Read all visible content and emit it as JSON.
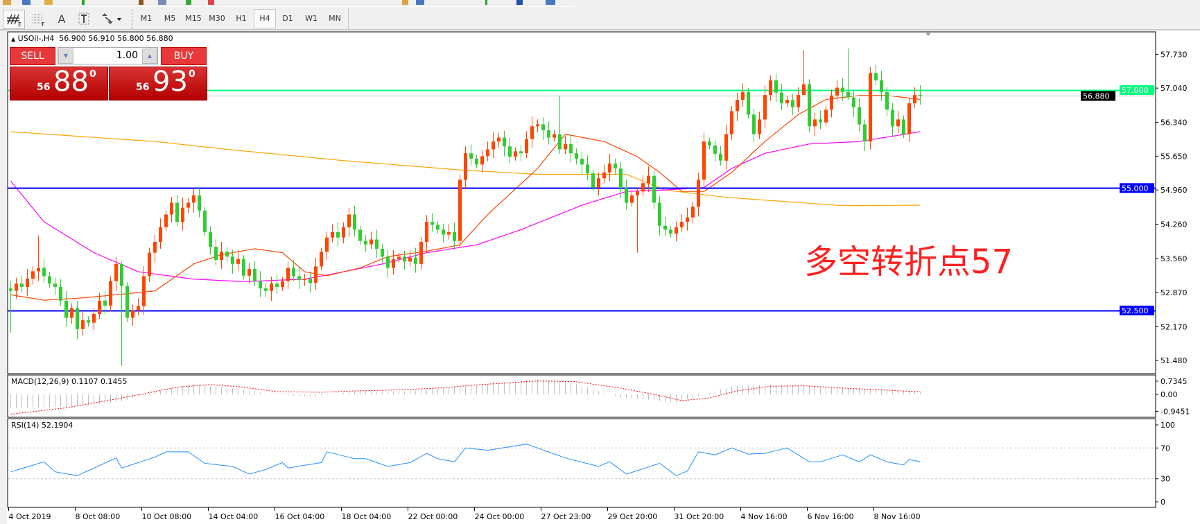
{
  "toolbar": {
    "tools": [
      "expert-advisor",
      "period-separators",
      "text",
      "text-label",
      "arrows"
    ],
    "text_tool_label": "A",
    "timeframes": [
      "M1",
      "M5",
      "M15",
      "M30",
      "H1",
      "H4",
      "D1",
      "W1",
      "MN"
    ],
    "selected_timeframe": "H4"
  },
  "chart": {
    "symbol": "USOil-,H4",
    "ohlc": "56.900 56.910 56.800 56.880"
  },
  "trade_panel": {
    "sell_label": "SELL",
    "buy_label": "BUY",
    "lot": "1.00",
    "sell_price": {
      "prefix": "56",
      "big": "88",
      "sup": "0"
    },
    "buy_price": {
      "prefix": "56",
      "big": "93",
      "sup": "0"
    }
  },
  "price_axis": {
    "ticks": [
      "57.730",
      "57.040",
      "56.340",
      "55.650",
      "54.960",
      "54.260",
      "53.560",
      "52.870",
      "52.170",
      "51.480"
    ]
  },
  "levels": [
    {
      "price": 57.0,
      "label": "57.000",
      "color": "#00ff7f",
      "text_color": "#ffffff"
    },
    {
      "price": 56.88,
      "label": "56.880",
      "color": "#000000",
      "text_color": "#ffffff",
      "line_color": "#c0c0c0"
    },
    {
      "price": 55.0,
      "label": "55.000",
      "color": "#0000ff",
      "text_color": "#ffffff"
    },
    {
      "price": 52.5,
      "label": "52.500",
      "color": "#0000ff",
      "text_color": "#ffffff"
    }
  ],
  "annotation": "多空转折点57",
  "time_axis": [
    "4 Oct 2019",
    "8 Oct 08:00",
    "10 Oct 08:00",
    "14 Oct 04:00",
    "16 Oct 04:00",
    "18 Oct 04:00",
    "22 Oct 00:00",
    "24 Oct 00:00",
    "27 Oct 23:00",
    "29 Oct 20:00",
    "31 Oct 20:00",
    "4 Nov 16:00",
    "6 Nov 16:00",
    "8 Nov 16:00"
  ],
  "chart_data": {
    "type": "candlestick",
    "ylim": [
      51.2,
      58.2
    ],
    "colors": {
      "bull": "#ff4500",
      "bear": "#32cd32"
    },
    "closes": [
      52.9,
      53.05,
      52.98,
      53.15,
      53.3,
      53.37,
      53.2,
      53.05,
      52.98,
      52.7,
      52.35,
      52.55,
      52.12,
      52.3,
      52.25,
      52.43,
      52.7,
      52.6,
      53.1,
      53.45,
      53.0,
      52.35,
      52.5,
      52.59,
      53.2,
      53.68,
      53.9,
      54.2,
      54.46,
      54.7,
      54.31,
      54.6,
      54.7,
      54.85,
      54.54,
      54.1,
      53.8,
      53.53,
      53.7,
      53.6,
      53.45,
      53.55,
      53.21,
      53.35,
      53.1,
      52.95,
      52.9,
      53.05,
      52.98,
      53.1,
      53.37,
      53.2,
      53.12,
      53.15,
      53.06,
      53.4,
      53.7,
      53.99,
      54.1,
      53.99,
      54.2,
      54.46,
      54.15,
      53.92,
      53.85,
      53.95,
      53.76,
      53.6,
      53.37,
      53.55,
      53.6,
      53.5,
      53.58,
      53.45,
      53.9,
      54.31,
      54.25,
      54.15,
      54.05,
      54.1,
      53.92,
      55.17,
      55.71,
      55.6,
      55.48,
      55.65,
      55.79,
      55.95,
      56.03,
      55.85,
      55.64,
      55.75,
      55.71,
      56.0,
      56.26,
      56.3,
      56.18,
      56.03,
      56.1,
      55.79,
      55.9,
      55.71,
      55.6,
      55.48,
      55.3,
      55.01,
      55.2,
      55.32,
      55.5,
      55.4,
      55.0,
      54.7,
      54.85,
      54.93,
      55.1,
      55.25,
      54.7,
      54.23,
      54.15,
      54.07,
      54.2,
      54.31,
      54.4,
      54.62,
      55.17,
      55.95,
      55.87,
      55.7,
      55.56,
      56.1,
      56.57,
      56.8,
      56.96,
      56.5,
      56.1,
      56.4,
      56.9,
      57.2,
      56.95,
      56.73,
      56.8,
      56.65,
      56.9,
      57.12,
      56.26,
      56.4,
      56.34,
      56.6,
      56.89,
      57.05,
      56.96,
      56.85,
      56.65,
      56.3,
      55.95,
      57.35,
      57.2,
      56.96,
      56.6,
      56.26,
      56.4,
      56.1,
      56.73,
      56.9,
      56.88
    ],
    "extreme_wicks": [
      [
        0,
        53.1,
        52.05
      ],
      [
        5,
        54.03,
        53.1
      ],
      [
        20,
        53.5,
        51.37
      ],
      [
        99,
        56.89,
        55.7
      ],
      [
        113,
        55.0,
        53.68
      ],
      [
        143,
        57.82,
        56.9
      ],
      [
        151,
        57.85,
        56.8
      ],
      [
        154,
        56.4,
        55.75
      ]
    ],
    "moving_averages": [
      {
        "color": "#ffa500",
        "points": [
          [
            0,
            56.15
          ],
          [
            26,
            55.95
          ],
          [
            39,
            55.79
          ],
          [
            60,
            55.56
          ],
          [
            81,
            55.37
          ],
          [
            95,
            55.28
          ],
          [
            111,
            55.28
          ],
          [
            118,
            54.96
          ],
          [
            129,
            54.81
          ],
          [
            150,
            54.64
          ],
          [
            164,
            54.65
          ]
        ]
      },
      {
        "color": "#ff00ff",
        "points": [
          [
            0,
            55.14
          ],
          [
            6,
            54.31
          ],
          [
            15,
            53.68
          ],
          [
            23,
            53.29
          ],
          [
            33,
            53.14
          ],
          [
            42,
            53.09
          ],
          [
            53,
            53.14
          ],
          [
            60,
            53.29
          ],
          [
            67,
            53.45
          ],
          [
            75,
            53.68
          ],
          [
            84,
            53.84
          ],
          [
            92,
            54.15
          ],
          [
            103,
            54.65
          ],
          [
            111,
            54.93
          ],
          [
            118,
            54.96
          ],
          [
            125,
            55.01
          ],
          [
            130,
            55.4
          ],
          [
            136,
            55.71
          ],
          [
            144,
            55.9
          ],
          [
            153,
            55.95
          ],
          [
            164,
            56.15
          ]
        ]
      },
      {
        "color": "#ff4500",
        "points": [
          [
            0,
            52.82
          ],
          [
            6,
            52.71
          ],
          [
            12,
            52.75
          ],
          [
            19,
            52.82
          ],
          [
            26,
            52.9
          ],
          [
            33,
            53.45
          ],
          [
            38,
            53.64
          ],
          [
            44,
            53.76
          ],
          [
            49,
            53.68
          ],
          [
            53,
            53.29
          ],
          [
            57,
            53.21
          ],
          [
            63,
            53.37
          ],
          [
            68,
            53.6
          ],
          [
            75,
            53.71
          ],
          [
            81,
            53.84
          ],
          [
            86,
            54.46
          ],
          [
            95,
            55.4
          ],
          [
            100,
            56.1
          ],
          [
            107,
            55.95
          ],
          [
            113,
            55.64
          ],
          [
            117,
            55.32
          ],
          [
            121,
            54.93
          ],
          [
            125,
            54.93
          ],
          [
            130,
            55.32
          ],
          [
            136,
            55.95
          ],
          [
            142,
            56.5
          ],
          [
            147,
            56.81
          ],
          [
            153,
            56.89
          ],
          [
            158,
            56.89
          ],
          [
            164,
            56.81
          ]
        ]
      }
    ]
  },
  "macd": {
    "label": "MACD(12,26,9) 0.1107 0.1455",
    "ticks": [
      "0.7345",
      "0.00",
      "-0.9451"
    ],
    "histogram_color": "#c0c0c0",
    "signal_color": "#ff0000",
    "histogram": [
      [
        0,
        -0.75
      ],
      [
        10,
        -0.7
      ],
      [
        20,
        -0.4
      ],
      [
        25,
        0.1
      ],
      [
        33,
        0.6
      ],
      [
        40,
        0.35
      ],
      [
        46,
        0.05
      ],
      [
        52,
        -0.1
      ],
      [
        57,
        -0.05
      ],
      [
        63,
        0.2
      ],
      [
        70,
        0.15
      ],
      [
        77,
        0.3
      ],
      [
        85,
        0.55
      ],
      [
        95,
        0.85
      ],
      [
        100,
        0.75
      ],
      [
        105,
        0.3
      ],
      [
        110,
        -0.2
      ],
      [
        115,
        -0.3
      ],
      [
        120,
        -0.45
      ],
      [
        124,
        -0.1
      ],
      [
        130,
        0.45
      ],
      [
        137,
        0.55
      ],
      [
        143,
        0.5
      ],
      [
        150,
        0.35
      ],
      [
        157,
        0.3
      ],
      [
        164,
        0.1107
      ]
    ],
    "signal": [
      [
        0,
        -1.1
      ],
      [
        10,
        -0.75
      ],
      [
        20,
        -0.2
      ],
      [
        30,
        0.4
      ],
      [
        36,
        0.55
      ],
      [
        42,
        0.4
      ],
      [
        48,
        0.15
      ],
      [
        56,
        0.12
      ],
      [
        63,
        0.2
      ],
      [
        70,
        0.25
      ],
      [
        77,
        0.35
      ],
      [
        85,
        0.55
      ],
      [
        95,
        0.75
      ],
      [
        102,
        0.7
      ],
      [
        110,
        0.35
      ],
      [
        116,
        0.0
      ],
      [
        121,
        -0.35
      ],
      [
        126,
        -0.2
      ],
      [
        131,
        0.2
      ],
      [
        137,
        0.45
      ],
      [
        143,
        0.48
      ],
      [
        150,
        0.35
      ],
      [
        157,
        0.25
      ],
      [
        164,
        0.1455
      ]
    ]
  },
  "rsi": {
    "label": "RSI(14) 52.1904",
    "ticks": [
      "100",
      "70",
      "30",
      "0"
    ],
    "levels": [
      70,
      30
    ],
    "color": "#1e90ff",
    "points": [
      [
        0,
        39
      ],
      [
        6,
        52
      ],
      [
        8,
        39
      ],
      [
        12,
        34
      ],
      [
        19,
        57
      ],
      [
        20,
        44
      ],
      [
        26,
        58
      ],
      [
        28,
        65
      ],
      [
        32,
        65
      ],
      [
        35,
        50
      ],
      [
        40,
        46
      ],
      [
        43,
        36
      ],
      [
        46,
        42
      ],
      [
        49,
        51
      ],
      [
        50,
        44
      ],
      [
        56,
        51
      ],
      [
        57,
        65
      ],
      [
        62,
        56
      ],
      [
        64,
        56
      ],
      [
        68,
        46
      ],
      [
        72,
        51
      ],
      [
        75,
        63
      ],
      [
        77,
        56
      ],
      [
        80,
        52
      ],
      [
        82,
        70
      ],
      [
        86,
        67
      ],
      [
        93,
        75
      ],
      [
        95,
        70
      ],
      [
        100,
        57
      ],
      [
        106,
        46
      ],
      [
        108,
        52
      ],
      [
        111,
        36
      ],
      [
        117,
        50
      ],
      [
        120,
        34
      ],
      [
        122,
        40
      ],
      [
        124,
        65
      ],
      [
        127,
        61
      ],
      [
        130,
        70
      ],
      [
        133,
        62
      ],
      [
        136,
        63
      ],
      [
        140,
        70
      ],
      [
        144,
        52
      ],
      [
        146,
        52
      ],
      [
        150,
        61
      ],
      [
        153,
        52
      ],
      [
        155,
        61
      ],
      [
        158,
        52
      ],
      [
        161,
        48
      ],
      [
        162,
        55
      ],
      [
        164,
        52.19
      ]
    ]
  }
}
